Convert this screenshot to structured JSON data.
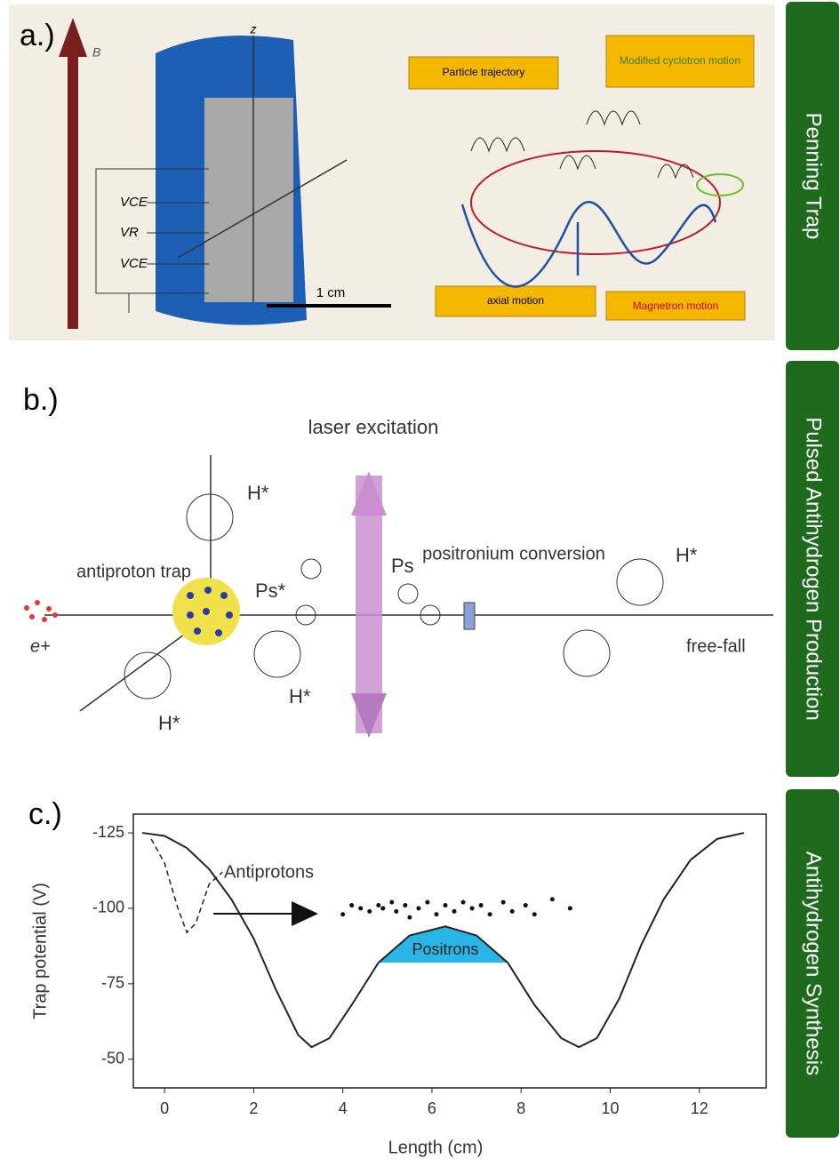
{
  "side_labels": [
    "Penning Trap",
    "Pulsed Antihydrogen Production",
    "Antihydrogen Synthesis"
  ],
  "panel_a": {
    "label": "a.)",
    "b_field": "B",
    "z_axis": "z",
    "voltages": [
      "VCE",
      "VR",
      "VCE"
    ],
    "scale": "1 cm",
    "boxes": [
      "Particle trajectory",
      "Modified cyclotron motion",
      "axial motion",
      "Magnetron motion"
    ]
  },
  "panel_b": {
    "label": "b.)",
    "laser": "laser excitation",
    "trap": "antiproton trap",
    "positron": "e+",
    "antihydrogen": [
      "H*",
      "H*",
      "H*",
      "H*"
    ],
    "ps_excited": "Ps*",
    "ps": "Ps",
    "conversion": "positronium conversion",
    "free_fall": "free-fall"
  },
  "panel_c": {
    "label": "c.)"
  },
  "chart_data": {
    "type": "line",
    "ylabel": "Trap potential (V)",
    "xlabel": "Length (cm)",
    "xlim": [
      -0.7,
      13.5
    ],
    "ylim": [
      -40.5,
      -131.2
    ],
    "xticks": [
      0,
      2,
      4,
      6,
      8,
      10,
      12
    ],
    "yticks": [
      -125,
      -100,
      -75,
      -50
    ],
    "x": [
      -0.5,
      0,
      0.5,
      1,
      1.5,
      2,
      2.5,
      3,
      3.3,
      3.7,
      4.2,
      4.8,
      5.5,
      6.3,
      7,
      7.7,
      8.3,
      8.9,
      9.3,
      9.7,
      10.2,
      10.7,
      11.2,
      11.8,
      12.4,
      13
    ],
    "values": [
      -125,
      -124,
      -120,
      -113,
      -103,
      -90,
      -73,
      -58,
      -54,
      -57,
      -68,
      -82,
      -91,
      -94,
      -91,
      -82,
      -68,
      -57,
      -54,
      -57,
      -70,
      -88,
      -103,
      -116,
      -123,
      -125
    ],
    "dashed": {
      "x": [
        -0.3,
        0,
        0.3,
        0.5,
        0.7,
        1,
        1.3
      ],
      "values": [
        -123,
        -115,
        -100,
        -92,
        -95,
        -108,
        -112
      ]
    },
    "positrons": {
      "label": "Positrons",
      "color": "#29b6e6",
      "x": [
        4.8,
        5.5,
        6.3,
        7,
        7.7
      ],
      "values": [
        -82,
        -91,
        -94,
        -91,
        -82
      ]
    },
    "antiprotons": {
      "label": "Antiprotons",
      "x": [
        4,
        4.2,
        4.4,
        4.6,
        4.8,
        4.9,
        5.1,
        5.2,
        5.4,
        5.5,
        5.7,
        5.9,
        6.1,
        6.3,
        6.5,
        6.7,
        6.9,
        7.1,
        7.3,
        7.6,
        7.8,
        8.1,
        8.3,
        8.7,
        9.1
      ],
      "y": [
        -98,
        -101,
        -100,
        -99,
        -101,
        -100,
        -102,
        -99,
        -101,
        -97,
        -100,
        -102,
        -98,
        -101,
        -99,
        -102,
        -100,
        -101,
        -98,
        -102,
        -99,
        -101,
        -98,
        -103,
        -100
      ]
    }
  }
}
